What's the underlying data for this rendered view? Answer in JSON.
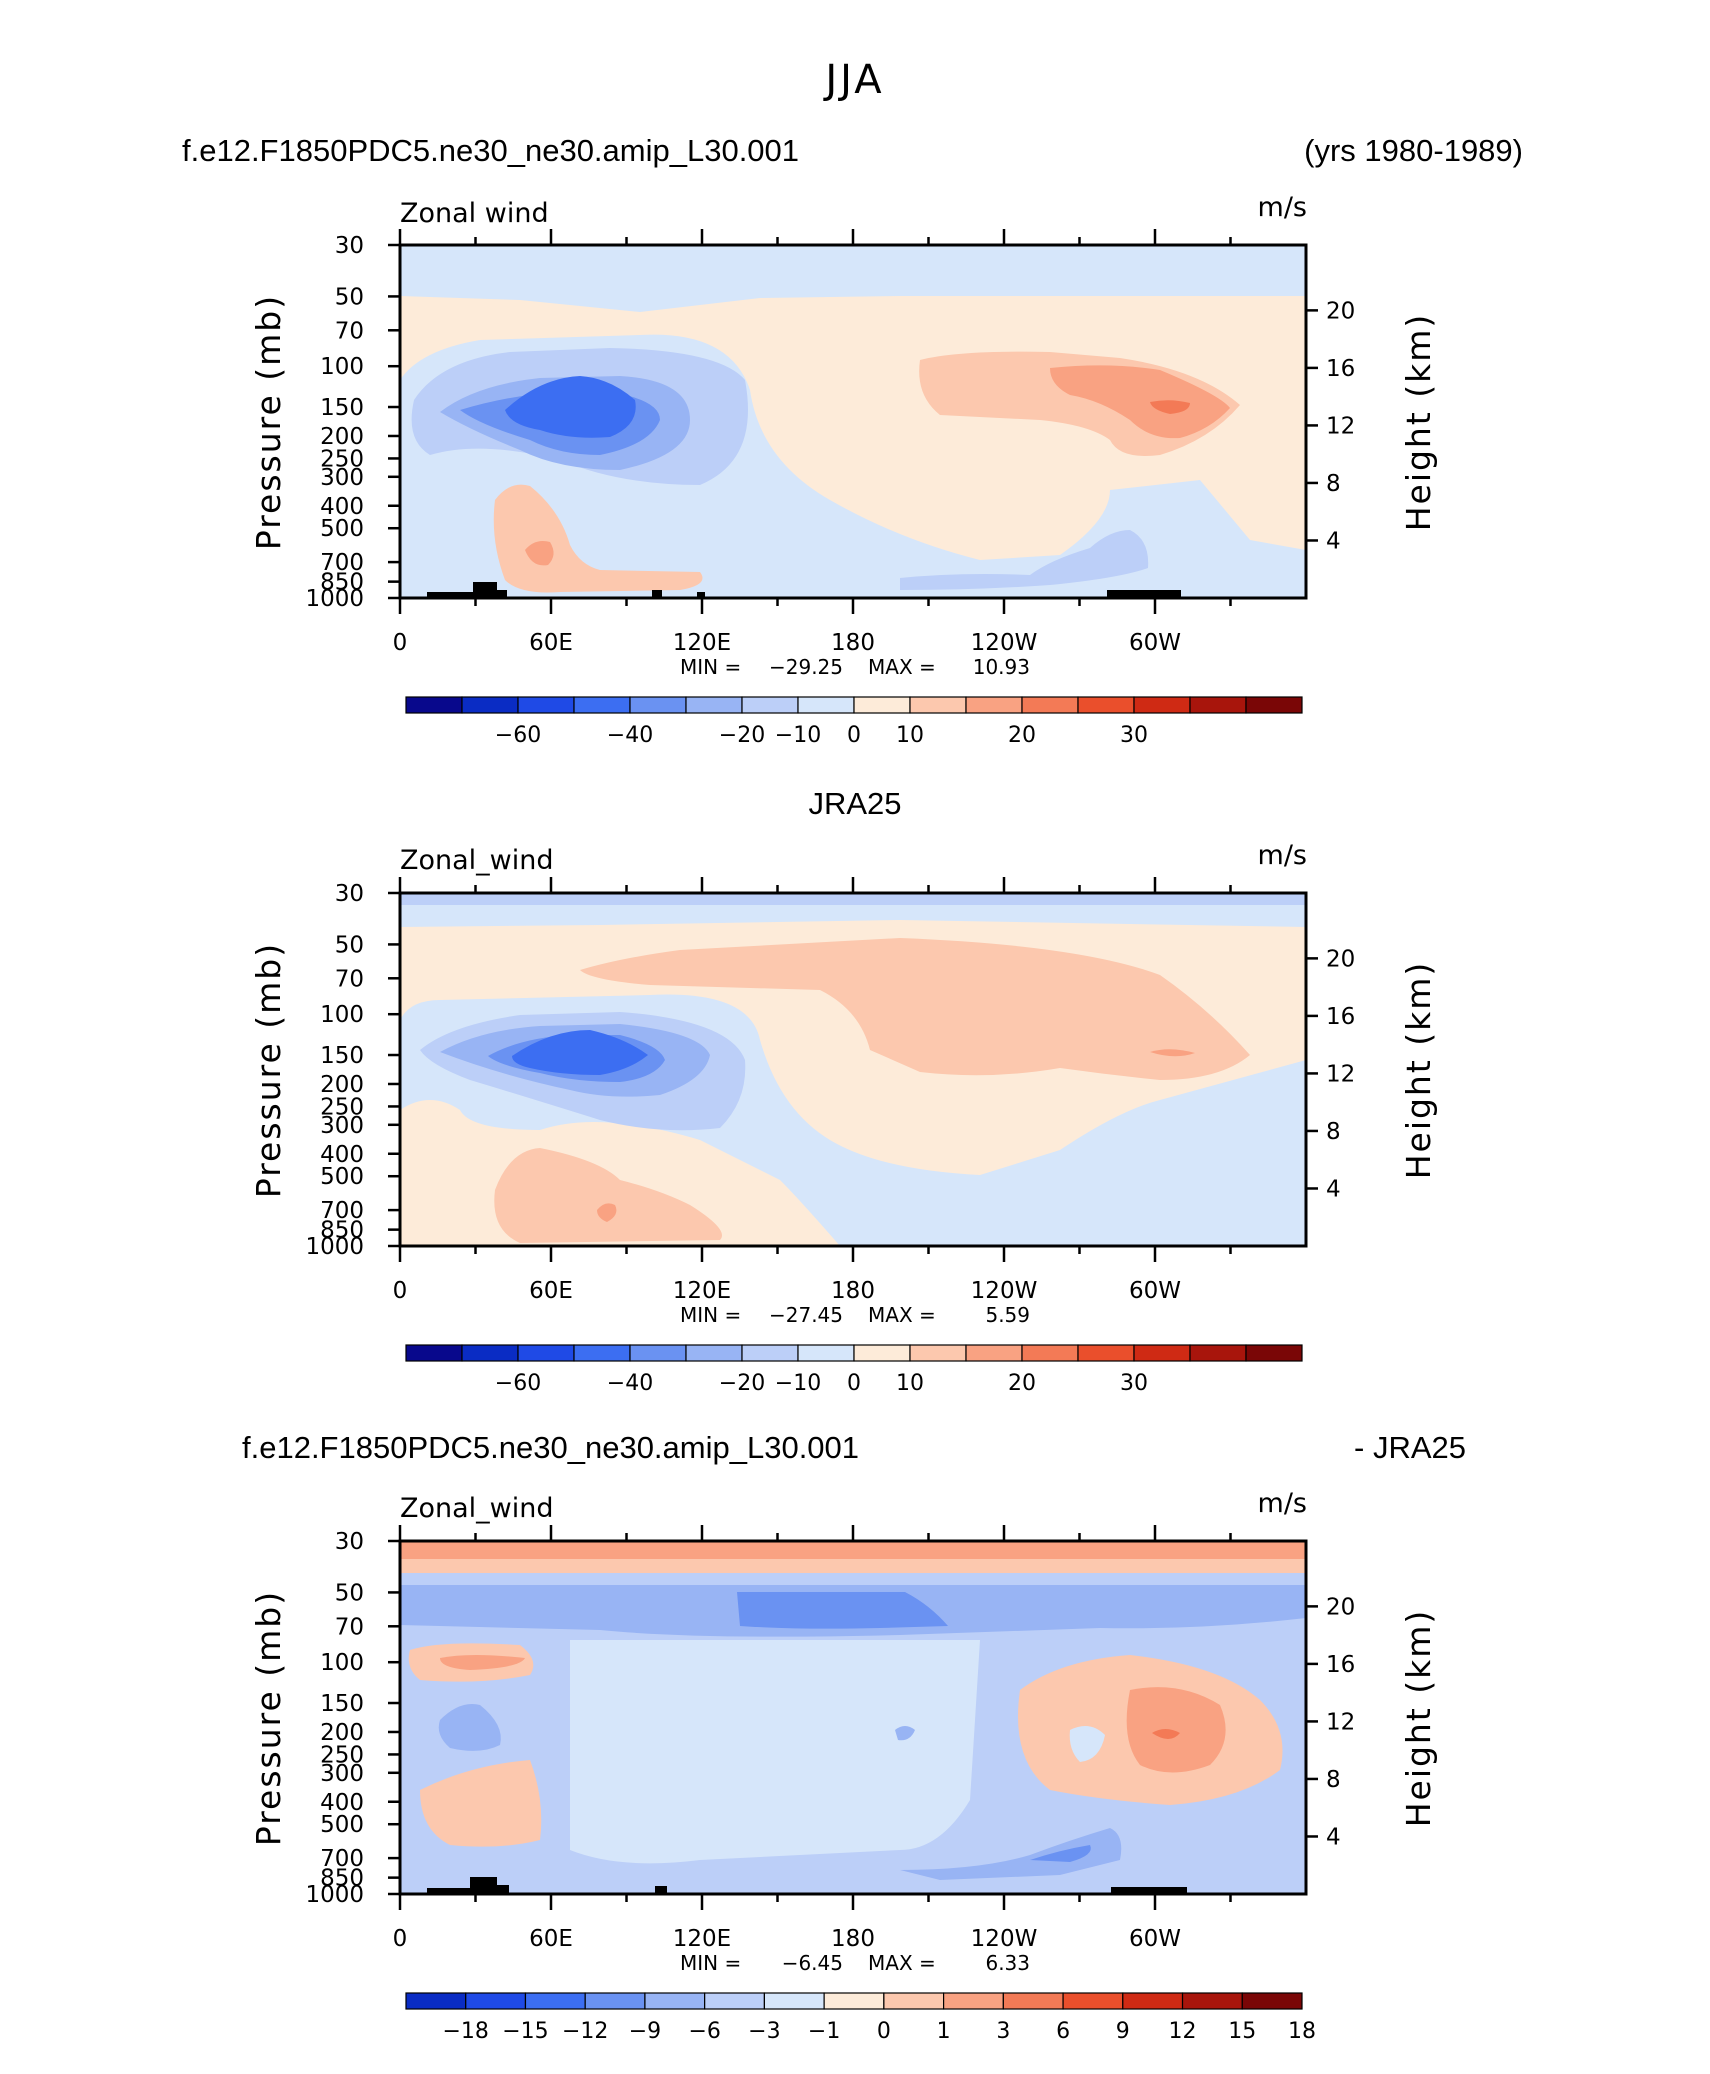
{
  "figure": {
    "title": "JJA"
  },
  "palettes": {
    "full": [
      "#08088c",
      "#0a2cc4",
      "#1f4ae6",
      "#3c6ef2",
      "#6a92f2",
      "#98b4f4",
      "#bccff8",
      "#d6e6fa",
      "#fdebd9",
      "#fcc8ae",
      "#f9a282",
      "#f37a56",
      "#ea4f2c",
      "#cf2a14",
      "#a8150c",
      "#7a0606"
    ],
    "diff": [
      "#0a2cc4",
      "#1f4ae6",
      "#3c6ef2",
      "#6a92f2",
      "#98b4f4",
      "#bccff8",
      "#d6e6fa",
      "#fdebd9",
      "#fcc8ae",
      "#f9a282",
      "#f37a56",
      "#ea4f2c",
      "#cf2a14",
      "#a8150c",
      "#7a0606"
    ]
  },
  "chart_data": [
    {
      "type": "heatmap",
      "panel": "model",
      "left_title": "f.e12.F1850PDC5.ne30_ne30.amip_L30.001",
      "right_title": "(yrs 1980-1989)",
      "center_title": "",
      "long_name": "Zonal wind",
      "units": "m/s",
      "ylabel": "Pressure (mb)",
      "ylabel_right": "Height (km)",
      "pressure_ticks": [
        "30",
        "50",
        "70",
        "100",
        "150",
        "200",
        "250",
        "300",
        "400",
        "500",
        "700",
        "850",
        "1000"
      ],
      "pressure_values": [
        30,
        50,
        70,
        100,
        150,
        200,
        250,
        300,
        400,
        500,
        700,
        850,
        1000
      ],
      "height_ticks": [
        "20",
        "16",
        "12",
        "8",
        "4"
      ],
      "height_values": [
        20,
        16,
        12,
        8,
        4
      ],
      "lon_ticks": [
        "0",
        "60E",
        "120E",
        "180",
        "120W",
        "60W"
      ],
      "lon_values": [
        0,
        60,
        120,
        180,
        240,
        300
      ],
      "lon_range": [
        0,
        360
      ],
      "min_label": "MIN =",
      "max_label": "MAX =",
      "min": "−29.25",
      "max": "10.93",
      "colorbar_labels": [
        "−60",
        "−40",
        "−20",
        "−10",
        "0",
        "10",
        "20",
        "30"
      ],
      "colorbar_levels": [
        -70,
        -60,
        -50,
        -40,
        -30,
        -20,
        -15,
        -10,
        -5,
        0,
        5,
        10,
        15,
        20,
        25,
        30,
        35
      ],
      "approx_regions": [
        {
          "lon": [
            0,
            360
          ],
          "p": [
            30,
            50
          ],
          "value": -5
        },
        {
          "lon": [
            0,
            360
          ],
          "p": [
            50,
            1000
          ],
          "value": 2
        },
        {
          "lon": [
            15,
            170
          ],
          "p": [
            85,
            250
          ],
          "value": -15
        },
        {
          "lon": [
            45,
            115
          ],
          "p": [
            120,
            210
          ],
          "value": -29
        },
        {
          "lon": [
            200,
            335
          ],
          "p": [
            90,
            180
          ],
          "value": 7
        },
        {
          "lon": [
            270,
            320
          ],
          "p": [
            120,
            220
          ],
          "value": 9
        },
        {
          "lon": [
            305,
            325
          ],
          "p": [
            145,
            160
          ],
          "value": 10.9
        },
        {
          "lon": [
            40,
            70
          ],
          "p": [
            450,
            950
          ],
          "value": 6
        },
        {
          "lon": [
            165,
            285
          ],
          "p": [
            500,
            1000
          ],
          "value": -5
        }
      ]
    },
    {
      "type": "heatmap",
      "panel": "obs",
      "left_title": "",
      "right_title": "",
      "center_title": "JRA25",
      "long_name": "Zonal_wind",
      "units": "m/s",
      "ylabel": "Pressure (mb)",
      "ylabel_right": "Height (km)",
      "pressure_ticks": [
        "30",
        "50",
        "70",
        "100",
        "150",
        "200",
        "250",
        "300",
        "400",
        "500",
        "700",
        "850",
        "1000"
      ],
      "pressure_values": [
        30,
        50,
        70,
        100,
        150,
        200,
        250,
        300,
        400,
        500,
        700,
        850,
        1000
      ],
      "height_ticks": [
        "20",
        "16",
        "12",
        "8",
        "4"
      ],
      "height_values": [
        20,
        16,
        12,
        8,
        4
      ],
      "lon_ticks": [
        "0",
        "60E",
        "120E",
        "180",
        "120W",
        "60W"
      ],
      "lon_values": [
        0,
        60,
        120,
        180,
        240,
        300
      ],
      "lon_range": [
        0,
        360
      ],
      "min_label": "MIN =",
      "max_label": "MAX =",
      "min": "−27.45",
      "max": "5.59",
      "colorbar_labels": [
        "−60",
        "−40",
        "−20",
        "−10",
        "0",
        "10",
        "20",
        "30"
      ],
      "colorbar_levels": [
        -70,
        -60,
        -50,
        -40,
        -30,
        -20,
        -15,
        -10,
        -5,
        0,
        5,
        10,
        15,
        20,
        25,
        30,
        35
      ],
      "approx_regions": [
        {
          "lon": [
            0,
            360
          ],
          "p": [
            30,
            40
          ],
          "value": -5
        },
        {
          "lon": [
            0,
            360
          ],
          "p": [
            40,
            1000
          ],
          "value": 2
        },
        {
          "lon": [
            15,
            140
          ],
          "p": [
            95,
            290
          ],
          "value": -15
        },
        {
          "lon": [
            45,
            100
          ],
          "p": [
            125,
            190
          ],
          "value": -27
        },
        {
          "lon": [
            70,
            340
          ],
          "p": [
            55,
            190
          ],
          "value": 6
        },
        {
          "lon": [
            170,
            360
          ],
          "p": [
            240,
            1000
          ],
          "value": -3
        }
      ]
    },
    {
      "type": "heatmap",
      "panel": "difference",
      "left_title": "f.e12.F1850PDC5.ne30_ne30.amip_L30.001",
      "right_title": "- JRA25",
      "center_title": "",
      "long_name": "Zonal_wind",
      "units": "m/s",
      "ylabel": "Pressure (mb)",
      "ylabel_right": "Height (km)",
      "pressure_ticks": [
        "30",
        "50",
        "70",
        "100",
        "150",
        "200",
        "250",
        "300",
        "400",
        "500",
        "700",
        "850",
        "1000"
      ],
      "pressure_values": [
        30,
        50,
        70,
        100,
        150,
        200,
        250,
        300,
        400,
        500,
        700,
        850,
        1000
      ],
      "height_ticks": [
        "20",
        "16",
        "12",
        "8",
        "4"
      ],
      "height_values": [
        20,
        16,
        12,
        8,
        4
      ],
      "lon_ticks": [
        "0",
        "60E",
        "120E",
        "180",
        "120W",
        "60W"
      ],
      "lon_values": [
        0,
        60,
        120,
        180,
        240,
        300
      ],
      "lon_range": [
        0,
        360
      ],
      "min_label": "MIN =",
      "max_label": "MAX =",
      "min": "−6.45",
      "max": "6.33",
      "colorbar_labels": [
        "−18",
        "−15",
        "−12",
        "−9",
        "−6",
        "−3",
        "−1",
        "0",
        "1",
        "3",
        "6",
        "9",
        "12",
        "15",
        "18"
      ],
      "colorbar_levels": [
        -21,
        -18,
        -15,
        -12,
        -9,
        -6,
        -3,
        -1,
        0,
        1,
        3,
        6,
        9,
        12,
        15,
        18,
        21
      ],
      "approx_regions": [
        {
          "lon": [
            0,
            360
          ],
          "p": [
            30,
            40
          ],
          "value": 4
        },
        {
          "lon": [
            0,
            360
          ],
          "p": [
            45,
            90
          ],
          "value": -3
        },
        {
          "lon": [
            130,
            210
          ],
          "p": [
            52,
            70
          ],
          "value": -6
        },
        {
          "lon": [
            0,
            360
          ],
          "p": [
            90,
            1000
          ],
          "value": -1.5
        },
        {
          "lon": [
            245,
            345
          ],
          "p": [
            120,
            330
          ],
          "value": 2
        },
        {
          "lon": [
            290,
            330
          ],
          "p": [
            150,
            260
          ],
          "value": 6.3
        }
      ]
    }
  ]
}
